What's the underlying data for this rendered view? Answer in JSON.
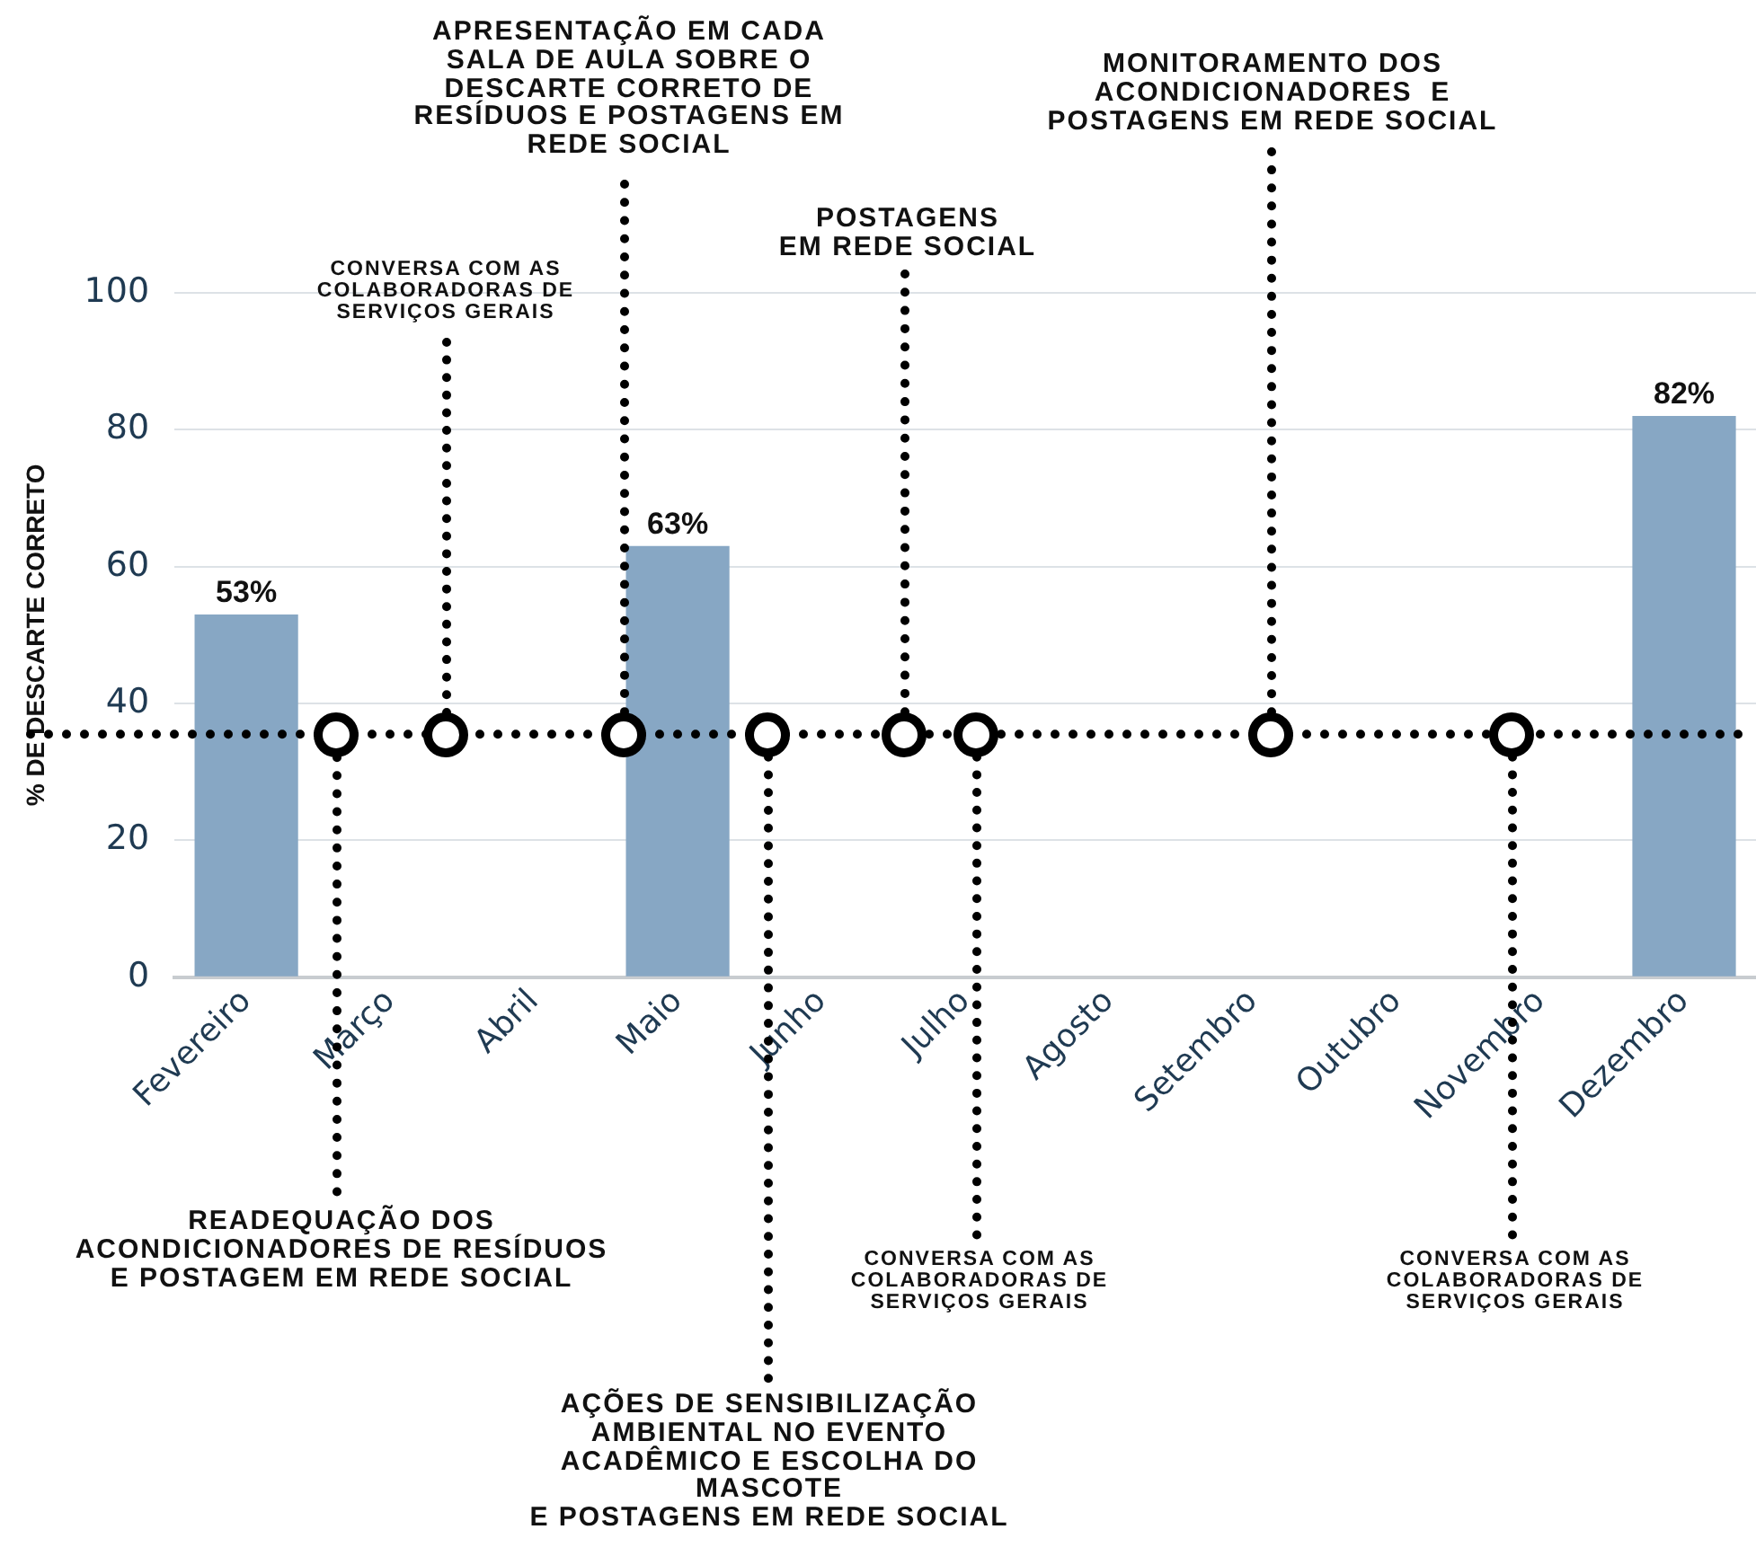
{
  "chart_data": {
    "type": "bar",
    "ylabel": "% DE DESCARTE CORRETO",
    "categories": [
      "Fevereiro",
      "Março",
      "Abril",
      "Maio",
      "Junho",
      "Julho",
      "Agosto",
      "Setembro",
      "Outubro",
      "Novembro",
      "Dezembro"
    ],
    "values": [
      53,
      null,
      null,
      63,
      null,
      null,
      null,
      null,
      null,
      null,
      82
    ],
    "value_labels": [
      "53%",
      null,
      null,
      "63%",
      null,
      null,
      null,
      null,
      null,
      null,
      "82%"
    ],
    "color": "#87a7c4",
    "ylim": [
      0,
      100
    ],
    "yticks": [
      0,
      20,
      40,
      60,
      80,
      100
    ],
    "grid": "y",
    "legend": false,
    "ref_lines": [
      {
        "axis": "y",
        "value": 35.5,
        "color": "#000000",
        "line_style": "dotted"
      }
    ],
    "annotations": [
      {
        "text": "READEQUAÇÃO DOS\nACONDICIONADORES DE RESÍDUOS\nE POSTAGEM EM REDE SOCIAL",
        "y": 35.5
      },
      {
        "text": "CONVERSA COM AS\nCOLABORADORAS DE\nSERVIÇOS GERAIS",
        "y": 35.5
      },
      {
        "text": "APRESENTAÇÃO EM CADA\nSALA DE AULA SOBRE O\nDESCARTE CORRETO DE\nRESÍDUOS E POSTAGENS EM\nREDE SOCIAL",
        "y": 35.5
      },
      {
        "text": "AÇÕES DE SENSIBILIZAÇÃO\nAMBIENTAL NO EVENTO\nACADÊMICO E ESCOLHA DO\nMASCOTE\nE POSTAGENS EM REDE SOCIAL",
        "y": 35.5
      },
      {
        "text": "POSTAGENS\nEM REDE SOCIAL",
        "y": 35.5
      },
      {
        "text": "CONVERSA COM AS\nCOLABORADORAS DE\nSERVIÇOS GERAIS",
        "y": 35.5
      },
      {
        "text": "MONITORAMENTO DOS\nACONDICIONADORES  E\nPOSTAGENS EM REDE SOCIAL",
        "y": 35.5
      },
      {
        "text": "CONVERSA COM AS\nCOLABORADORAS DE\nSERVIÇOS GERAIS",
        "y": 35.5
      }
    ]
  }
}
